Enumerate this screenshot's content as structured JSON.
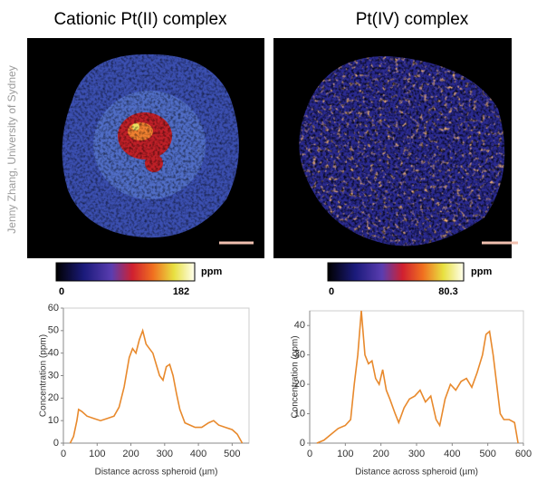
{
  "credit": "Jenny Zhang, University of Sydney",
  "panels": [
    {
      "title": "Cationic Pt(II) complex",
      "colorbar": {
        "min": 0,
        "max": 182,
        "unit": "ppm"
      }
    },
    {
      "title": "Pt(IV) complex",
      "colorbar": {
        "min": 0,
        "max": 80.3,
        "unit": "ppm"
      }
    }
  ],
  "chart_data": [
    {
      "type": "line",
      "xlabel": "Distance across spheroid (µm)",
      "ylabel": "Concentration (ppm)",
      "xlim": [
        0,
        550
      ],
      "xticks": [
        0,
        100,
        200,
        300,
        400,
        500
      ],
      "ylim": [
        0,
        60
      ],
      "yticks": [
        0,
        10,
        20,
        30,
        40,
        50,
        60
      ],
      "series": [
        {
          "color": "#e8892c",
          "x": [
            20,
            30,
            40,
            45,
            55,
            70,
            90,
            110,
            130,
            150,
            165,
            180,
            195,
            205,
            215,
            225,
            235,
            245,
            255,
            265,
            275,
            285,
            295,
            305,
            315,
            325,
            335,
            345,
            360,
            375,
            390,
            410,
            430,
            445,
            460,
            480,
            500,
            515,
            530
          ],
          "values": [
            0,
            3,
            10,
            15,
            14,
            12,
            11,
            10,
            11,
            12,
            16,
            25,
            38,
            42,
            40,
            46,
            50,
            44,
            42,
            40,
            35,
            30,
            28,
            34,
            35,
            30,
            22,
            15,
            9,
            8,
            7,
            7,
            9,
            10,
            8,
            7,
            6,
            4,
            0
          ]
        }
      ]
    },
    {
      "type": "line",
      "xlabel": "Distance across spheroid (µm)",
      "ylabel": "Concentration (ppm)",
      "xlim": [
        0,
        600
      ],
      "xticks": [
        0,
        100,
        200,
        300,
        400,
        500,
        600
      ],
      "ylim": [
        0,
        45
      ],
      "yticks": [
        0,
        10,
        20,
        30,
        40
      ],
      "series": [
        {
          "color": "#e8892c",
          "x": [
            20,
            40,
            60,
            80,
            100,
            115,
            125,
            135,
            145,
            155,
            165,
            175,
            185,
            195,
            205,
            215,
            225,
            240,
            250,
            265,
            280,
            295,
            310,
            325,
            340,
            355,
            365,
            380,
            395,
            410,
            425,
            440,
            455,
            470,
            485,
            495,
            505,
            515,
            525,
            535,
            545,
            560,
            575,
            585
          ],
          "values": [
            0,
            1,
            3,
            5,
            6,
            8,
            20,
            30,
            45,
            30,
            27,
            28,
            22,
            20,
            25,
            18,
            15,
            10,
            7,
            12,
            15,
            16,
            18,
            14,
            16,
            8,
            6,
            15,
            20,
            18,
            21,
            22,
            19,
            24,
            30,
            37,
            38,
            30,
            20,
            10,
            8,
            8,
            7,
            0
          ]
        }
      ]
    }
  ]
}
